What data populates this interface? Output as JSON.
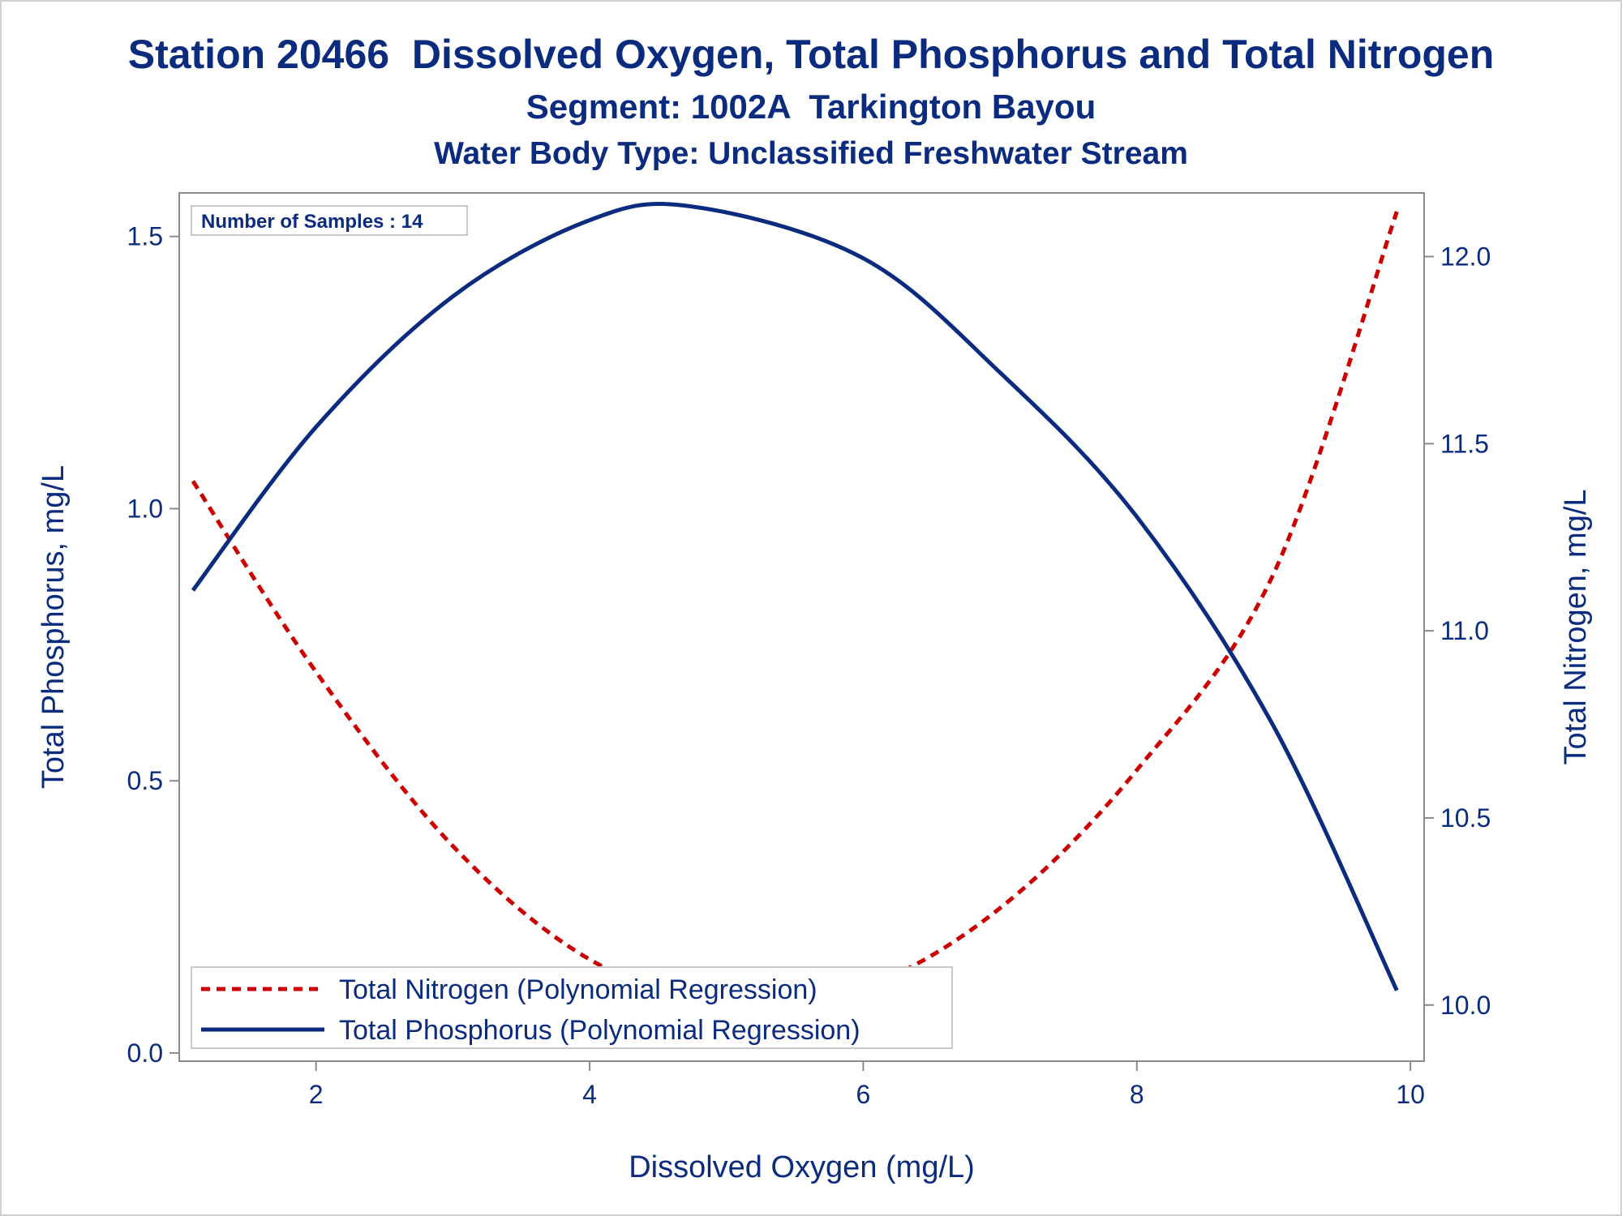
{
  "chart_data": {
    "type": "line",
    "title": "Station 20466  Dissolved Oxygen, Total Phosphorus and Total Nitrogen",
    "subtitle": "Segment: 1002A  Tarkington Bayou",
    "subtitle2": "Water Body Type: Unclassified Freshwater Stream",
    "xlabel": "Dissolved Oxygen (mg/L)",
    "ylabel": "Total Phosphorus, mg/L",
    "y2label": "Total Nitrogen, mg/L",
    "xlim": [
      1.0,
      10.1
    ],
    "ylim": [
      -0.015,
      1.58
    ],
    "y2lim": [
      9.85,
      12.17
    ],
    "xticks": [
      "2",
      "4",
      "6",
      "8",
      "10"
    ],
    "yticks": [
      "0.0",
      "0.5",
      "1.0",
      "1.5"
    ],
    "y2ticks": [
      "10.0",
      "10.5",
      "11.0",
      "11.5",
      "12.0"
    ],
    "grid": false,
    "legend_position": "bottom-left",
    "annotation": "Number of Samples : 14",
    "series": [
      {
        "name": "Total Nitrogen (Polynomial Regression)",
        "axis": "right",
        "style": "dashed",
        "color": "#cc0000",
        "x": [
          1.1,
          2.0,
          3.0,
          4.0,
          5.0,
          6.0,
          7.0,
          8.0,
          9.0,
          9.9
        ],
        "y": [
          11.4,
          10.89,
          10.425,
          10.122,
          10.0,
          10.046,
          10.259,
          10.628,
          11.153,
          12.12
        ]
      },
      {
        "name": "Total Phosphorus (Polynomial Regression)",
        "axis": "left",
        "style": "solid",
        "color": "#0b2b7e",
        "x": [
          1.1,
          2.0,
          3.0,
          4.0,
          4.75,
          6.0,
          7.0,
          8.0,
          9.0,
          9.9
        ],
        "y": [
          0.85,
          1.15,
          1.39,
          1.53,
          1.555,
          1.46,
          1.25,
          0.985,
          0.6,
          0.115
        ]
      }
    ]
  }
}
